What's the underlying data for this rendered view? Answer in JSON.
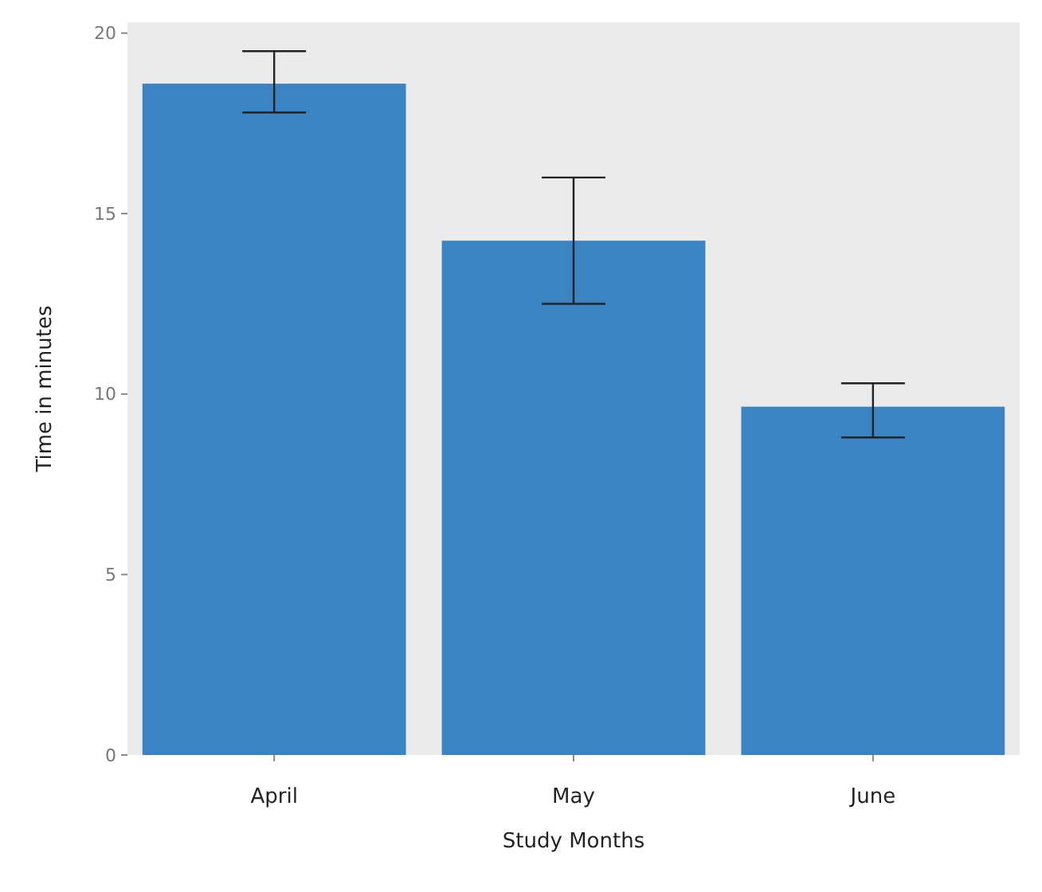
{
  "chart_data": {
    "type": "bar",
    "xlabel": "Study Months",
    "ylabel": "Time in minutes",
    "categories": [
      "April",
      "May",
      "June"
    ],
    "values": [
      18.6,
      14.25,
      9.65
    ],
    "errors": [
      [
        17.8,
        19.5
      ],
      [
        12.5,
        16.0
      ],
      [
        8.8,
        10.3
      ]
    ],
    "color": "#3a84c3",
    "ylim": [
      0,
      20.3
    ],
    "yticks": [
      0,
      5,
      10,
      15,
      20
    ],
    "grid": false
  }
}
